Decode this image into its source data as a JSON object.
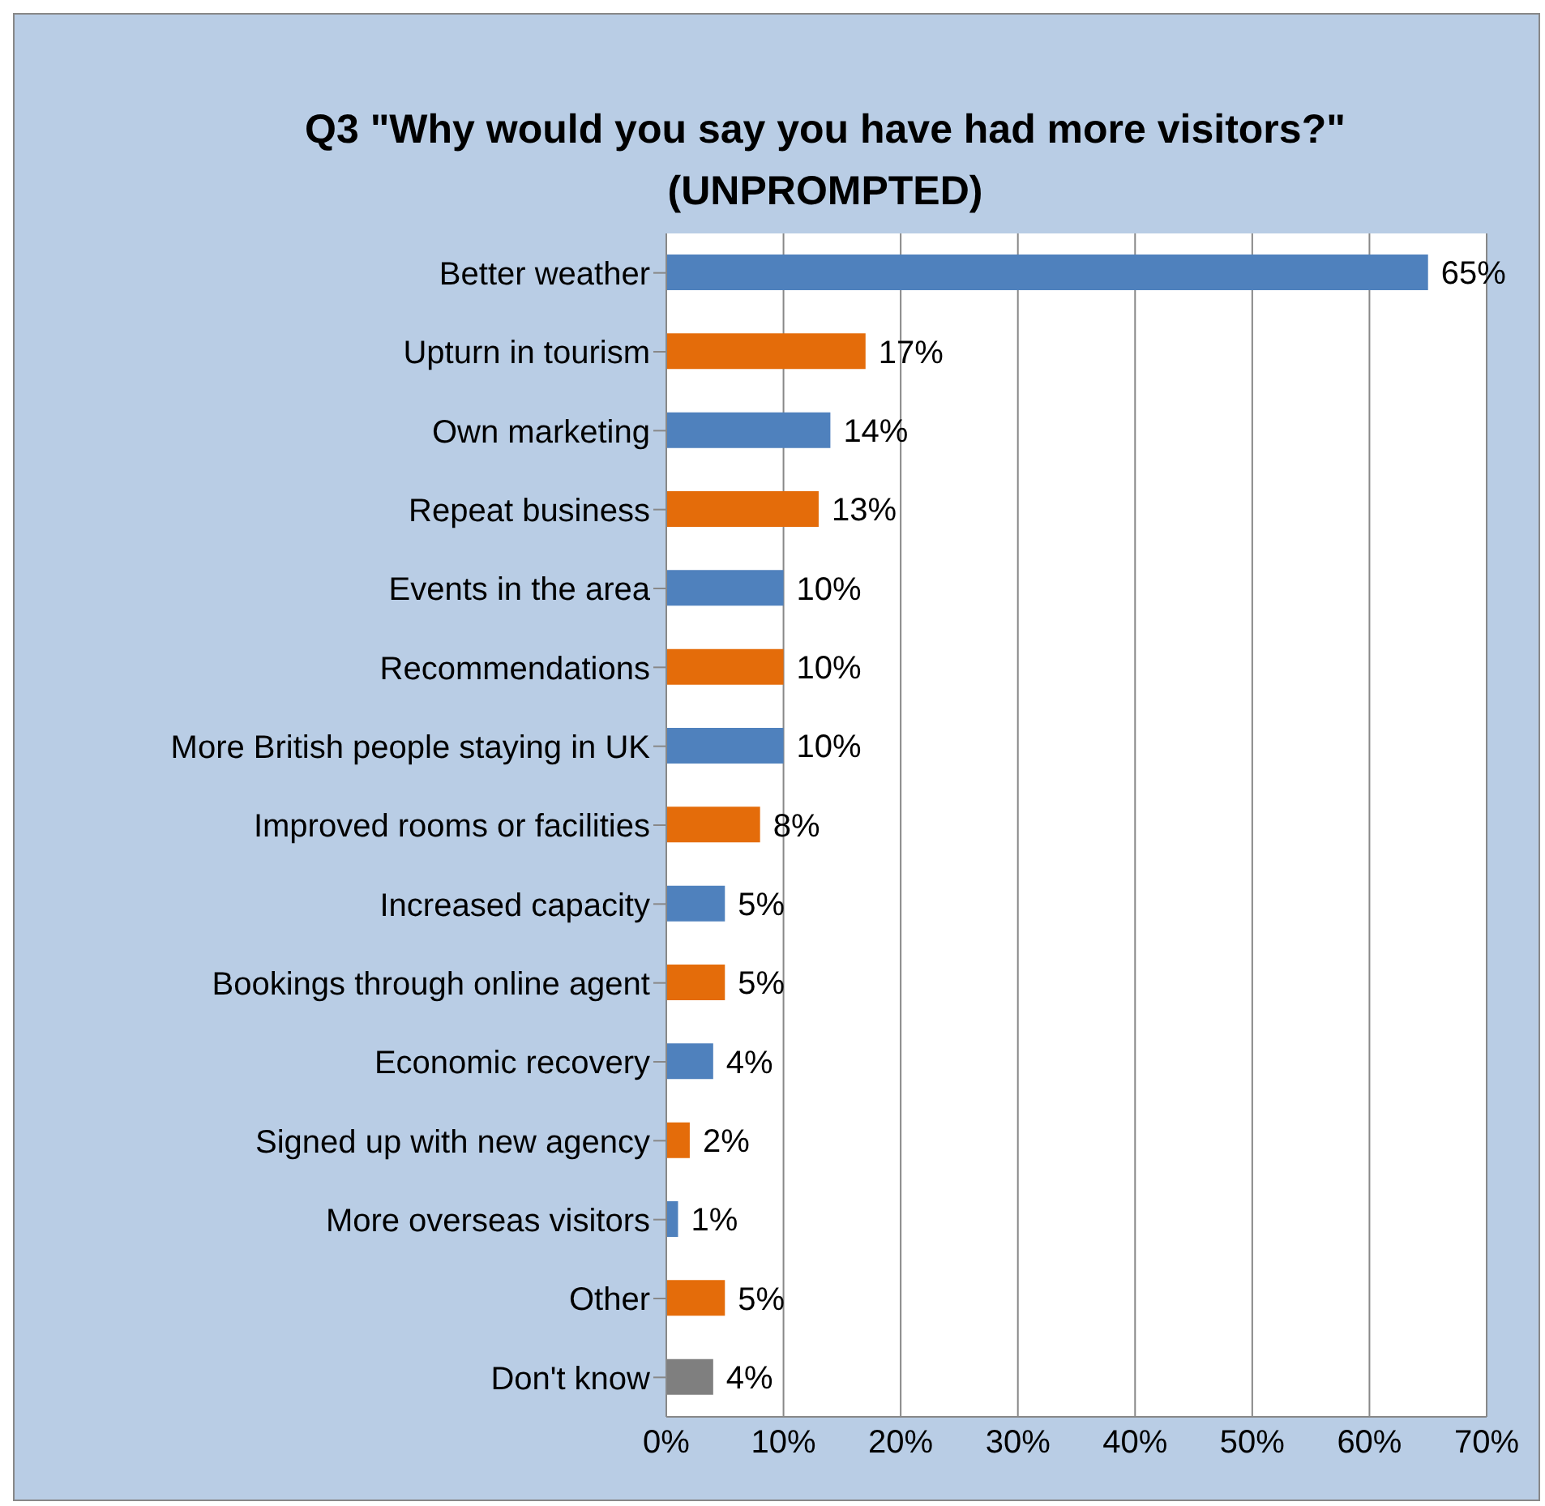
{
  "chart_data": {
    "type": "bar",
    "orientation": "horizontal",
    "title": "Q3 \"Why would you say you have had more visitors?\" (UNPROMPTED)",
    "categories": [
      "Better weather",
      "Upturn in tourism",
      "Own marketing",
      "Repeat business",
      "Events in the area",
      "Recommendations",
      "More British people staying in UK",
      "Improved rooms or facilities",
      "Increased capacity",
      "Bookings through online agent",
      "Economic recovery",
      "Signed up with new agency",
      "More overseas visitors",
      "Other",
      "Don't know"
    ],
    "values": [
      65,
      17,
      14,
      13,
      10,
      10,
      10,
      8,
      5,
      5,
      4,
      2,
      1,
      5,
      4
    ],
    "value_labels": [
      "65%",
      "17%",
      "14%",
      "13%",
      "10%",
      "10%",
      "10%",
      "8%",
      "5%",
      "5%",
      "4%",
      "2%",
      "1%",
      "5%",
      "4%"
    ],
    "colors": [
      "#4f81bd",
      "#e46c0a",
      "#4f81bd",
      "#e46c0a",
      "#4f81bd",
      "#e46c0a",
      "#4f81bd",
      "#e46c0a",
      "#4f81bd",
      "#e46c0a",
      "#4f81bd",
      "#e46c0a",
      "#4f81bd",
      "#e46c0a",
      "#7f7f7f"
    ],
    "xlim": [
      0,
      70
    ],
    "xticks": [
      {
        "value": 0,
        "label": "0%"
      },
      {
        "value": 10,
        "label": "10%"
      },
      {
        "value": 20,
        "label": "20%"
      },
      {
        "value": 30,
        "label": "30%"
      },
      {
        "value": 40,
        "label": "40%"
      },
      {
        "value": 50,
        "label": "50%"
      },
      {
        "value": 60,
        "label": "60%"
      },
      {
        "value": 70,
        "label": "70%"
      }
    ],
    "grid": "x",
    "legend": false
  }
}
